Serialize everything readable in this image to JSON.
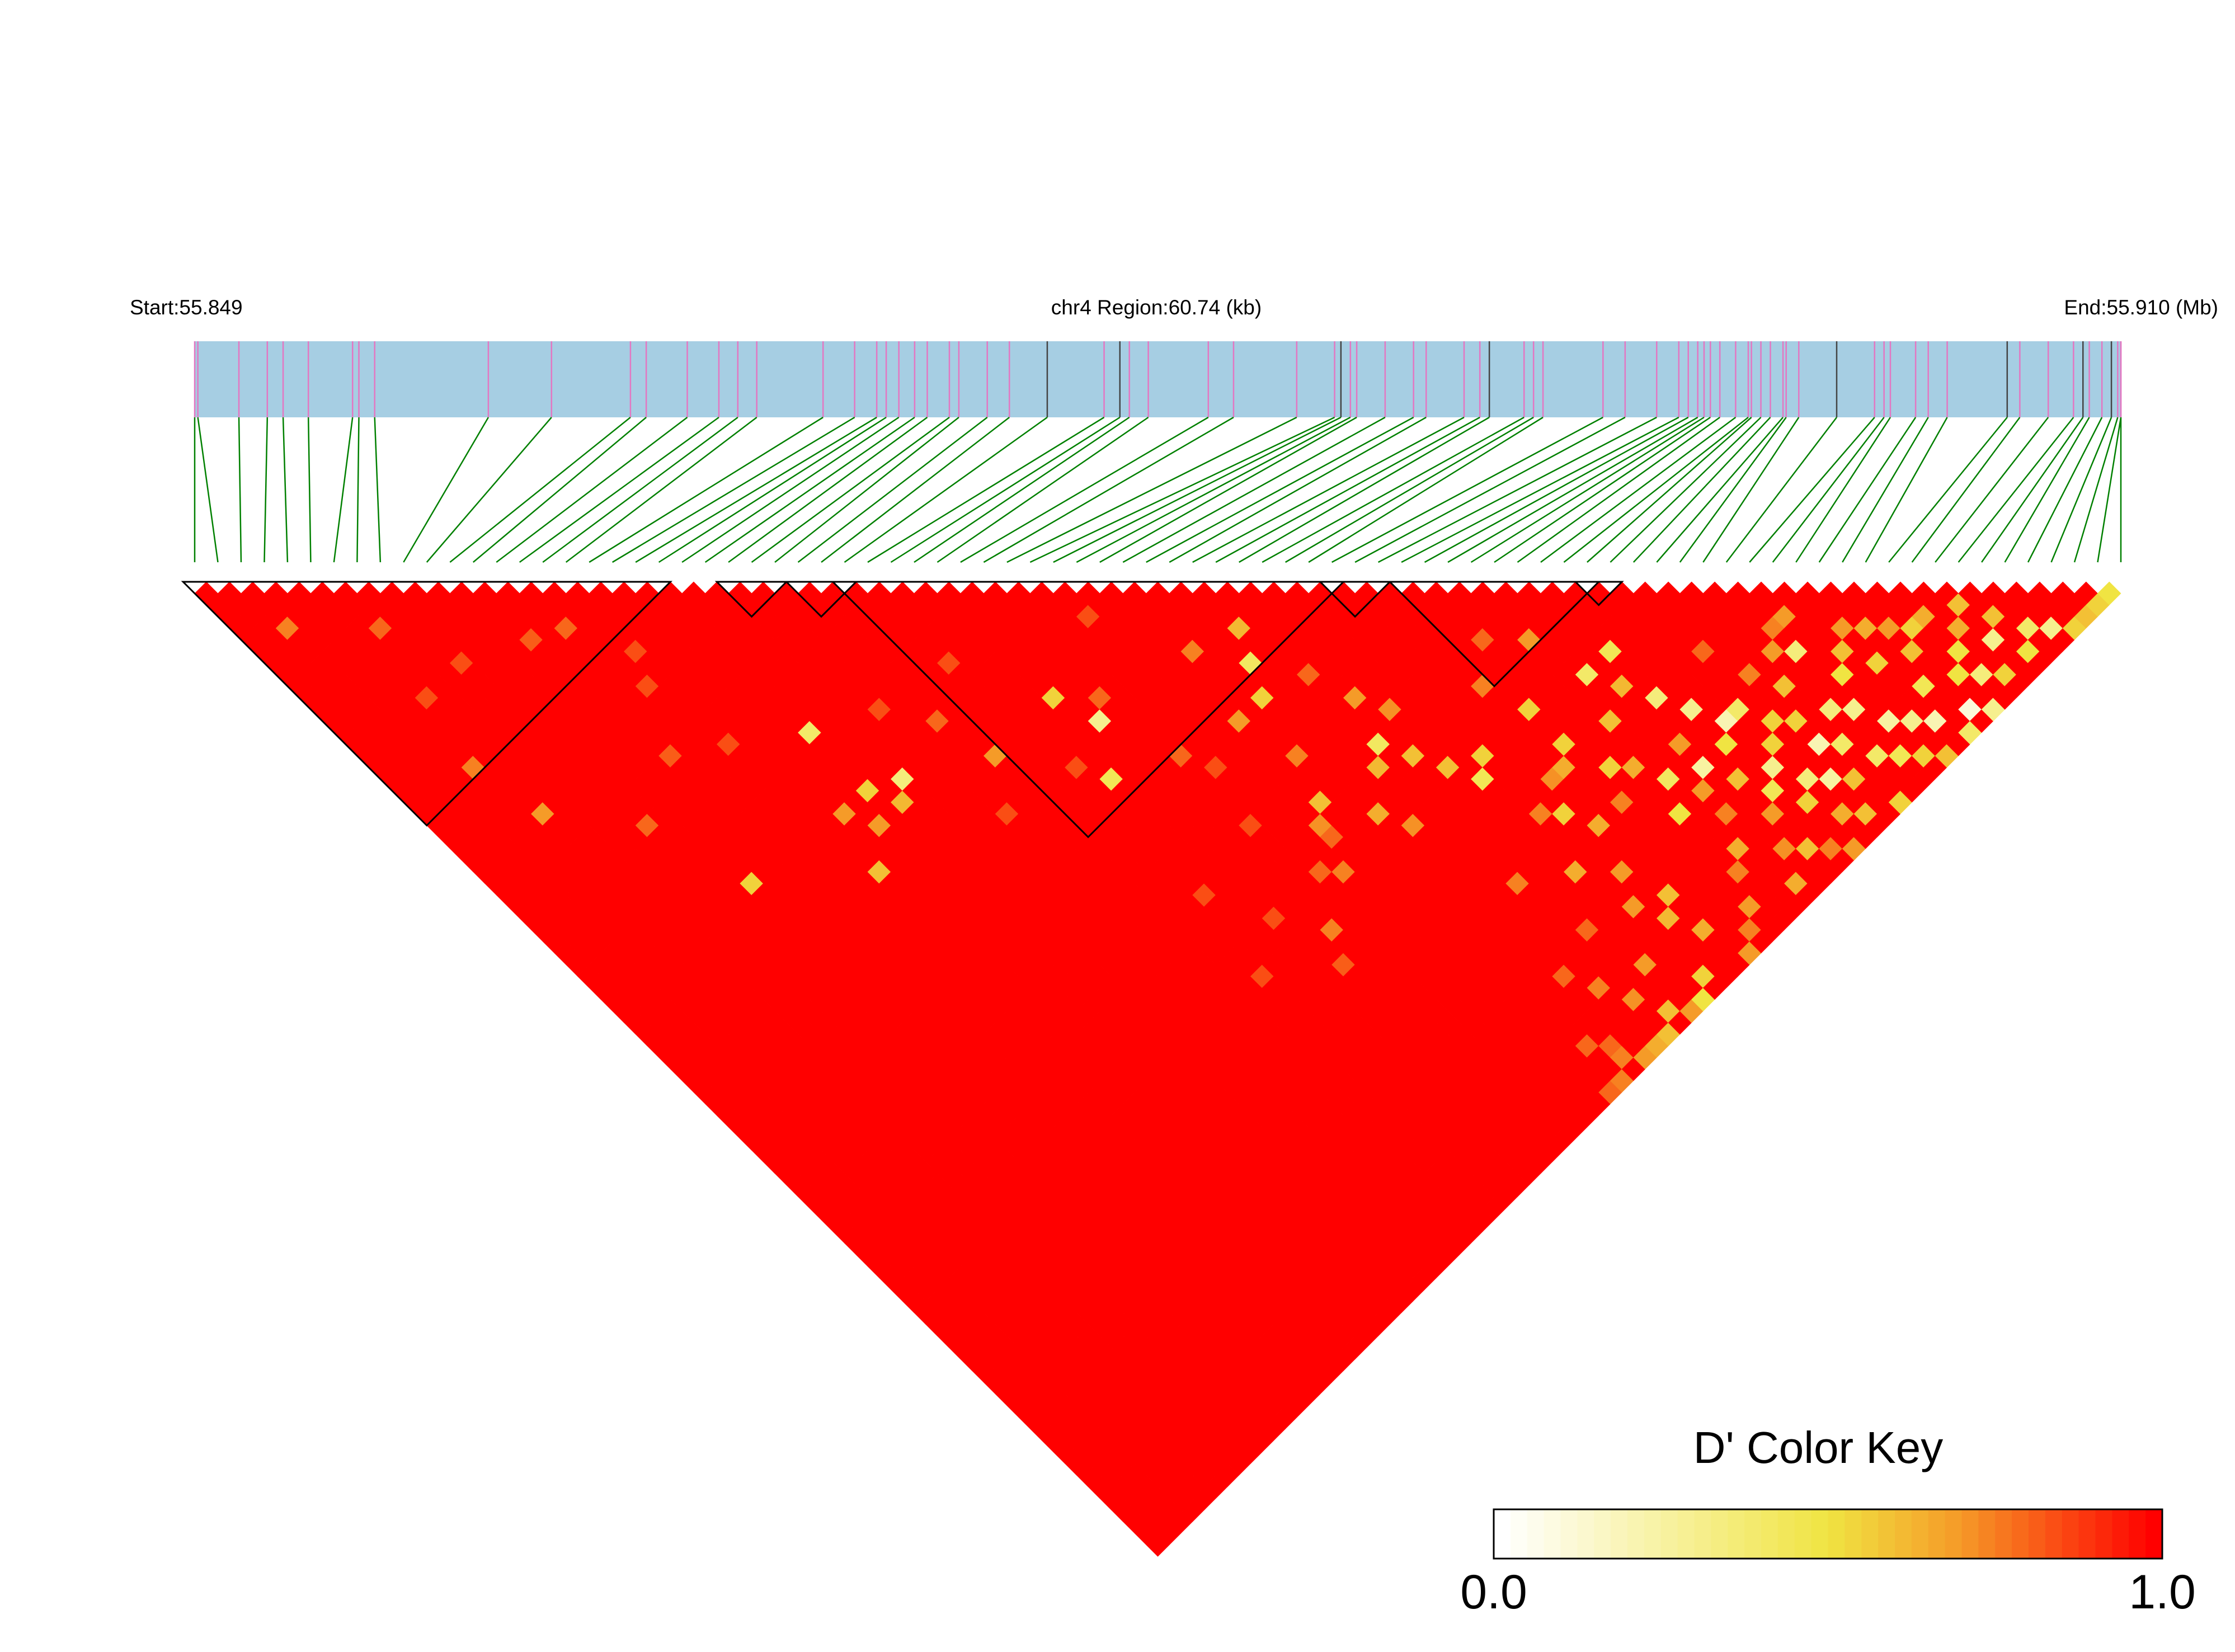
{
  "header": {
    "start_label": "Start:55.849",
    "region_label": "chr4 Region:60.74 (kb)",
    "end_label": "End:55.910 (Mb)"
  },
  "colors": {
    "bar_fill": "#a6cee3",
    "snp_mark": "#e377c2",
    "snp_mark_dark": "#444444",
    "connector": "#008000",
    "block_outline": "#000000",
    "low": "#ffffff",
    "mid": "#f0e442",
    "high": "#ff0000"
  },
  "chart_data": {
    "type": "heatmap",
    "title": "",
    "region": {
      "chromosome": "chr4",
      "start_mb": 55.849,
      "end_mb": 55.91,
      "length_kb": 60.74
    },
    "snp_count": 84,
    "snp_positions_mb": [
      55.849,
      55.8491,
      55.8504,
      55.8513,
      55.8518,
      55.8526,
      55.854,
      55.8542,
      55.8547,
      55.8583,
      55.8603,
      55.8628,
      55.8633,
      55.8646,
      55.8656,
      55.8662,
      55.8668,
      55.8689,
      55.8699,
      55.8706,
      55.8709,
      55.8713,
      55.8718,
      55.8722,
      55.8729,
      55.8732,
      55.8741,
      55.8748,
      55.876,
      55.8778,
      55.8783,
      55.8786,
      55.8792,
      55.8811,
      55.8819,
      55.8839,
      55.8851,
      55.8853,
      55.8856,
      55.8858,
      55.8867,
      55.8876,
      55.888,
      55.8892,
      55.8897,
      55.89,
      55.8911,
      55.8914,
      55.8917,
      55.8936,
      55.8943,
      55.8953,
      55.896,
      55.8963,
      55.8966,
      55.8968,
      55.897,
      55.8973,
      55.8978,
      55.8982,
      55.8983,
      55.8986,
      55.8989,
      55.8993,
      55.8994,
      55.8998,
      55.901,
      55.9022,
      55.9025,
      55.9027,
      55.9035,
      55.9039,
      55.9045,
      55.9064,
      55.9068,
      55.9077,
      55.9085,
      55.9088,
      55.909,
      55.9094,
      55.9097,
      55.9099,
      55.91,
      55.91
    ],
    "dark_mark_indices": [
      28,
      30,
      37,
      45,
      66,
      73,
      77,
      80
    ],
    "ld_blocks": [
      [
        0,
        20
      ],
      [
        23,
        25
      ],
      [
        26,
        28
      ],
      [
        28,
        49
      ],
      [
        49,
        51
      ],
      [
        52,
        60
      ],
      [
        60,
        61
      ]
    ],
    "metric": "D'",
    "default_dprime": 1.0,
    "low_cells": [
      [
        2,
        6,
        0.75
      ],
      [
        6,
        10,
        0.8
      ],
      [
        5,
        15,
        0.85
      ],
      [
        4,
        20,
        0.75
      ],
      [
        8,
        15,
        0.85
      ],
      [
        5,
        25,
        0.7
      ],
      [
        12,
        17,
        0.82
      ],
      [
        14,
        18,
        0.8
      ],
      [
        9,
        30,
        0.8
      ],
      [
        16,
        22,
        0.85
      ],
      [
        13,
        28,
        0.82
      ],
      [
        11,
        37,
        0.55
      ],
      [
        16,
        30,
        0.85
      ],
      [
        17,
        42,
        0.6
      ],
      [
        18,
        38,
        0.7
      ],
      [
        20,
        38,
        0.55
      ],
      [
        19,
        40,
        0.7
      ],
      [
        15,
        24,
        0.85
      ],
      [
        20,
        33,
        0.4
      ],
      [
        22,
        39,
        0.35
      ],
      [
        21,
        40,
        0.62
      ],
      [
        24,
        35,
        0.85
      ],
      [
        26,
        38,
        0.8
      ],
      [
        25,
        45,
        0.85
      ],
      [
        27,
        42,
        0.7
      ],
      [
        29,
        36,
        0.85
      ],
      [
        32,
        42,
        0.55
      ],
      [
        33,
        45,
        0.3
      ],
      [
        31,
        48,
        0.45
      ],
      [
        34,
        44,
        0.8
      ],
      [
        35,
        50,
        0.8
      ],
      [
        30,
        46,
        0.85
      ],
      [
        37,
        40,
        0.85
      ],
      [
        40,
        46,
        0.75
      ],
      [
        39,
        51,
        0.7
      ],
      [
        41,
        51,
        0.55
      ],
      [
        42,
        49,
        0.42
      ],
      [
        36,
        52,
        0.85
      ],
      [
        43,
        47,
        0.62
      ],
      [
        44,
        52,
        0.8
      ],
      [
        40,
        55,
        0.75
      ],
      [
        45,
        55,
        0.7
      ],
      [
        46,
        57,
        0.72
      ],
      [
        35,
        56,
        0.85
      ],
      [
        39,
        58,
        0.6
      ],
      [
        44,
        58,
        0.42
      ],
      [
        30,
        57,
        0.85
      ],
      [
        38,
        59,
        0.72
      ],
      [
        38,
        60,
        0.8
      ],
      [
        43,
        59,
        0.62
      ],
      [
        41,
        61,
        0.65
      ],
      [
        32,
        61,
        0.85
      ],
      [
        37,
        62,
        0.75
      ],
      [
        29,
        63,
        0.85
      ],
      [
        34,
        64,
        0.75
      ],
      [
        46,
        62,
        0.6
      ],
      [
        47,
        64,
        0.45
      ],
      [
        48,
        63,
        0.55
      ],
      [
        45,
        60,
        0.6
      ],
      [
        42,
        63,
        0.72
      ],
      [
        36,
        61,
        0.8
      ],
      [
        33,
        66,
        0.82
      ],
      [
        51,
        60,
        0.75
      ],
      [
        52,
        63,
        0.55
      ],
      [
        51,
        67,
        0.65
      ],
      [
        53,
        58,
        0.8
      ],
      [
        55,
        60,
        0.7
      ],
      [
        56,
        64,
        0.4
      ],
      [
        58,
        64,
        0.45
      ],
      [
        57,
        66,
        0.62
      ],
      [
        52,
        66,
        0.55
      ],
      [
        50,
        67,
        0.72
      ],
      [
        48,
        68,
        0.75
      ],
      [
        49,
        69,
        0.55
      ],
      [
        55,
        67,
        0.6
      ],
      [
        58,
        68,
        0.35
      ],
      [
        59,
        70,
        0.3
      ],
      [
        55,
        72,
        0.42
      ],
      [
        57,
        73,
        0.25
      ],
      [
        54,
        74,
        0.5
      ],
      [
        60,
        72,
        0.2
      ],
      [
        61,
        75,
        0.55
      ],
      [
        52,
        71,
        0.75
      ],
      [
        50,
        71,
        0.65
      ],
      [
        62,
        68,
        0.8
      ],
      [
        61,
        72,
        0.4
      ],
      [
        53,
        69,
        0.55
      ],
      [
        56,
        74,
        0.7
      ],
      [
        58,
        75,
        0.6
      ],
      [
        60,
        76,
        0.3
      ],
      [
        61,
        78,
        0.35
      ],
      [
        62,
        79,
        0.25
      ],
      [
        63,
        77,
        0.2
      ],
      [
        64,
        78,
        0.4
      ],
      [
        63,
        75,
        0.55
      ],
      [
        65,
        76,
        0.35
      ],
      [
        66,
        77,
        0.3
      ],
      [
        65,
        80,
        0.4
      ],
      [
        67,
        79,
        0.25
      ],
      [
        66,
        81,
        0.45
      ],
      [
        68,
        80,
        0.3
      ],
      [
        69,
        81,
        0.2
      ],
      [
        70,
        83,
        0.4
      ],
      [
        71,
        82,
        0.1
      ],
      [
        72,
        83,
        0.3
      ],
      [
        67,
        82,
        0.55
      ],
      [
        68,
        83,
        0.6
      ],
      [
        69,
        76,
        0.55
      ],
      [
        70,
        79,
        0.45
      ],
      [
        71,
        77,
        0.6
      ],
      [
        72,
        80,
        0.5
      ],
      [
        73,
        81,
        0.35
      ],
      [
        74,
        82,
        0.55
      ],
      [
        75,
        80,
        0.3
      ],
      [
        76,
        82,
        0.5
      ],
      [
        77,
        81,
        0.4
      ],
      [
        78,
        82,
        0.3
      ],
      [
        79,
        83,
        0.55
      ],
      [
        80,
        83,
        0.6
      ],
      [
        81,
        83,
        0.55
      ],
      [
        82,
        83,
        0.5
      ],
      [
        76,
        79,
        0.6
      ],
      [
        74,
        78,
        0.65
      ],
      [
        73,
        79,
        0.5
      ],
      [
        65,
        71,
        0.7
      ],
      [
        64,
        73,
        0.6
      ],
      [
        66,
        72,
        0.35
      ],
      [
        67,
        75,
        0.5
      ],
      [
        62,
        74,
        0.55
      ],
      [
        63,
        71,
        0.75
      ],
      [
        59,
        73,
        0.5
      ],
      [
        57,
        71,
        0.7
      ],
      [
        54,
        70,
        0.65
      ],
      [
        60,
        79,
        0.55
      ],
      [
        59,
        77,
        0.45
      ],
      [
        58,
        78,
        0.7
      ],
      [
        62,
        82,
        0.6
      ],
      [
        64,
        83,
        0.55
      ],
      [
        61,
        81,
        0.65
      ],
      [
        60,
        83,
        0.7
      ],
      [
        63,
        80,
        0.6
      ],
      [
        56,
        76,
        0.75
      ],
      [
        55,
        78,
        0.65
      ],
      [
        57,
        80,
        0.72
      ],
      [
        54,
        79,
        0.75
      ],
      [
        53,
        81,
        0.7
      ],
      [
        52,
        82,
        0.75
      ],
      [
        51,
        83,
        0.7
      ],
      [
        56,
        82,
        0.65
      ],
      [
        58,
        81,
        0.6
      ],
      [
        59,
        82,
        0.75
      ],
      [
        70,
        74,
        0.65
      ],
      [
        71,
        75,
        0.7
      ],
      [
        72,
        76,
        0.55
      ],
      [
        75,
        77,
        0.6
      ],
      [
        73,
        76,
        0.65
      ],
      [
        69,
        73,
        0.7
      ],
      [
        68,
        74,
        0.6
      ],
      [
        66,
        70,
        0.75
      ],
      [
        67,
        70,
        0.7
      ],
      [
        45,
        75,
        0.8
      ],
      [
        44,
        70,
        0.75
      ],
      [
        47,
        72,
        0.65
      ],
      [
        48,
        76,
        0.7
      ],
      [
        49,
        78,
        0.62
      ],
      [
        46,
        79,
        0.7
      ],
      [
        50,
        80,
        0.65
      ],
      [
        44,
        80,
        0.72
      ],
      [
        48,
        82,
        0.55
      ],
      [
        47,
        83,
        0.5
      ],
      [
        46,
        83,
        0.7
      ],
      [
        45,
        82,
        0.6
      ],
      [
        50,
        77,
        0.6
      ],
      [
        49,
        74,
        0.7
      ],
      [
        43,
        78,
        0.75
      ],
      [
        42,
        76,
        0.8
      ],
      [
        43,
        83,
        0.65
      ],
      [
        44,
        83,
        0.6
      ],
      [
        42,
        83,
        0.7
      ],
      [
        41,
        82,
        0.75
      ],
      [
        41,
        81,
        0.8
      ],
      [
        40,
        83,
        0.75
      ],
      [
        39,
        83,
        0.8
      ],
      [
        40,
        80,
        0.8
      ]
    ]
  },
  "color_key": {
    "title": "D' Color Key",
    "min_label": "0.0",
    "max_label": "1.0"
  }
}
